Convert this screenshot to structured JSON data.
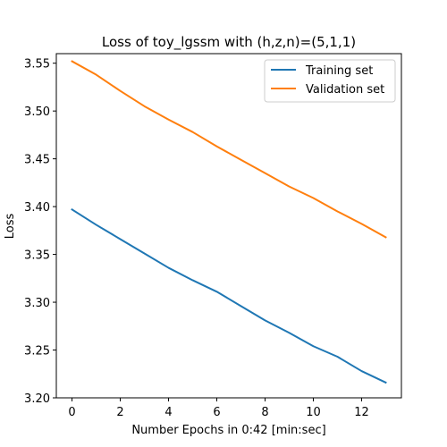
{
  "chart_data": {
    "type": "line",
    "title": "Loss of toy_lgssm with (h,z,n)=(5,1,1)",
    "xlabel": "Number Epochs in  0:42 [min:sec]",
    "ylabel": "Loss",
    "xlim": [
      -0.65,
      13.65
    ],
    "ylim": [
      3.2,
      3.56
    ],
    "xticks": [
      0,
      2,
      4,
      6,
      8,
      10,
      12
    ],
    "yticks": [
      3.2,
      3.25,
      3.3,
      3.35,
      3.4,
      3.45,
      3.5,
      3.55
    ],
    "ytick_labels": [
      "3.20",
      "3.25",
      "3.30",
      "3.35",
      "3.40",
      "3.45",
      "3.50",
      "3.55"
    ],
    "grid": false,
    "legend_position": "top-right",
    "x": [
      0,
      1,
      2,
      3,
      4,
      5,
      6,
      7,
      8,
      9,
      10,
      11,
      12,
      13
    ],
    "series": [
      {
        "name": "Training set",
        "color": "#1f77b4",
        "values": [
          3.397,
          3.381,
          3.366,
          3.351,
          3.336,
          3.323,
          3.311,
          3.296,
          3.281,
          3.268,
          3.254,
          3.243,
          3.228,
          3.216
        ]
      },
      {
        "name": "Validation set",
        "color": "#ff7f0e",
        "values": [
          3.552,
          3.538,
          3.521,
          3.505,
          3.491,
          3.478,
          3.463,
          3.449,
          3.435,
          3.421,
          3.409,
          3.395,
          3.382,
          3.368
        ]
      }
    ]
  }
}
